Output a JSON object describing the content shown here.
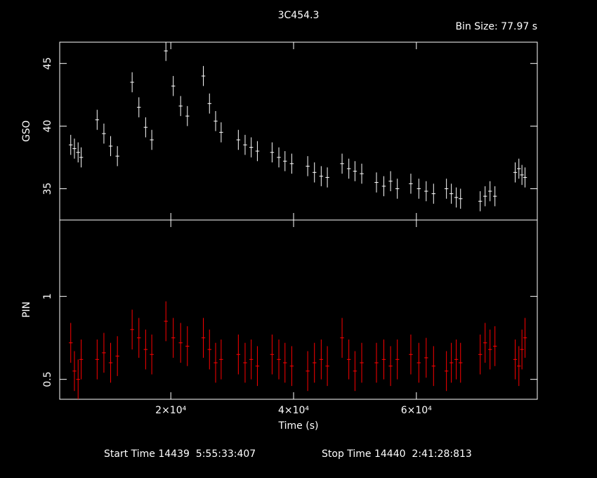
{
  "chart_data": [
    {
      "type": "errorbar",
      "title": "3C454.3",
      "subtitle": "Bin Size: 77.97 s",
      "ylabel": "GSO",
      "xlim": [
        1900,
        79700
      ],
      "ylim": [
        32.5,
        46.7
      ],
      "yticks": [
        35,
        40,
        45
      ],
      "series": [
        {
          "name": "GSO",
          "color": "#ffffff",
          "error": 0.8,
          "x": [
            3700,
            4300,
            4900,
            5400,
            8000,
            9100,
            10200,
            11300,
            13700,
            14800,
            15900,
            16900,
            19200,
            20400,
            21600,
            22700,
            25300,
            26300,
            27300,
            28200,
            31000,
            32100,
            33100,
            34100,
            36500,
            37600,
            38600,
            39700,
            42300,
            43400,
            44500,
            45500,
            47900,
            49000,
            50000,
            51100,
            53500,
            54700,
            55800,
            56900,
            59100,
            60400,
            61600,
            62800,
            64900,
            65700,
            66500,
            67200,
            70400,
            71200,
            72000,
            72800,
            76100,
            76700,
            77200,
            77700
          ],
          "values": [
            38.5,
            38.2,
            37.9,
            37.5,
            40.5,
            39.4,
            38.4,
            37.6,
            43.5,
            41.5,
            39.9,
            38.9,
            46.0,
            43.2,
            41.6,
            40.8,
            44.0,
            41.8,
            40.4,
            39.5,
            38.9,
            38.5,
            38.3,
            38.0,
            37.9,
            37.5,
            37.2,
            37.0,
            36.8,
            36.3,
            36.0,
            35.9,
            37.0,
            36.6,
            36.4,
            36.2,
            35.5,
            35.2,
            35.6,
            35.0,
            35.4,
            35.0,
            34.8,
            34.6,
            35.0,
            34.6,
            34.3,
            34.2,
            34.0,
            34.4,
            34.8,
            34.4,
            36.3,
            36.6,
            36.1,
            35.9
          ]
        }
      ]
    },
    {
      "type": "errorbar",
      "ylabel": "PIN",
      "xlabel": "Time (s)",
      "xlim": [
        1900,
        79700
      ],
      "xticks": [
        {
          "value": 20000,
          "label": "2×10⁴"
        },
        {
          "value": 40000,
          "label": "4×10⁴"
        },
        {
          "value": 60000,
          "label": "6×10⁴"
        }
      ],
      "ylim": [
        0.38,
        1.46
      ],
      "yticks": [
        0.5,
        1
      ],
      "series": [
        {
          "name": "PIN",
          "color": "#ff0000",
          "error": 0.12,
          "x": [
            3700,
            4300,
            4900,
            5400,
            8000,
            9100,
            10200,
            11300,
            13700,
            14800,
            15900,
            16900,
            19200,
            20400,
            21600,
            22700,
            25300,
            26300,
            27300,
            28200,
            31000,
            32100,
            33100,
            34100,
            36500,
            37600,
            38600,
            39700,
            42300,
            43400,
            44500,
            45500,
            47900,
            49000,
            50000,
            51100,
            53500,
            54700,
            55800,
            56900,
            59100,
            60400,
            61600,
            62800,
            64900,
            65700,
            66500,
            67200,
            70400,
            71200,
            72000,
            72800,
            76100,
            76700,
            77200,
            77700
          ],
          "values": [
            0.72,
            0.55,
            0.5,
            0.62,
            0.62,
            0.66,
            0.6,
            0.64,
            0.8,
            0.75,
            0.68,
            0.65,
            0.85,
            0.75,
            0.72,
            0.7,
            0.75,
            0.68,
            0.6,
            0.62,
            0.65,
            0.6,
            0.62,
            0.58,
            0.65,
            0.62,
            0.6,
            0.58,
            0.55,
            0.6,
            0.62,
            0.58,
            0.75,
            0.62,
            0.55,
            0.6,
            0.6,
            0.62,
            0.58,
            0.62,
            0.65,
            0.6,
            0.63,
            0.58,
            0.55,
            0.6,
            0.62,
            0.6,
            0.65,
            0.72,
            0.68,
            0.7,
            0.62,
            0.58,
            0.68,
            0.75
          ]
        }
      ]
    }
  ],
  "footer": {
    "start_time": "Start Time 14439  5:55:33:407",
    "stop_time": "Stop Time 14440  2:41:28:813"
  }
}
